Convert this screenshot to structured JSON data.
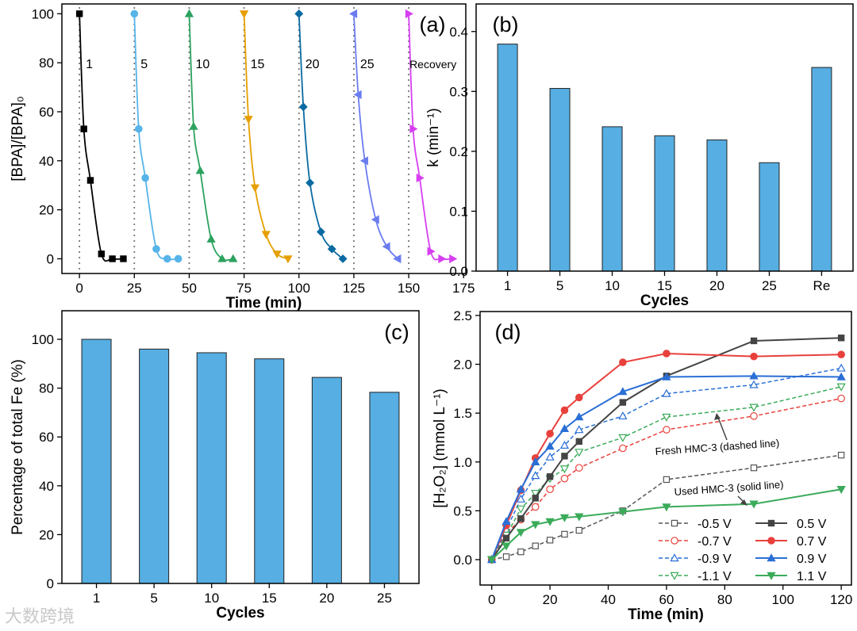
{
  "watermark": "大数跨境",
  "chart_data": [
    {
      "panel": "(a)",
      "type": "line",
      "xlabel": "Time (min)",
      "ylabel": "[BPA]/[BPA]₀",
      "xlim": [
        -8,
        176
      ],
      "ylim": [
        -6,
        104
      ],
      "xticks": [
        0,
        25,
        50,
        75,
        100,
        125,
        150,
        175
      ],
      "yticks": [
        0,
        20,
        40,
        60,
        80,
        100
      ],
      "cycle_markers": [
        0,
        25,
        50,
        75,
        100,
        125,
        150
      ],
      "series": [
        {
          "name": "1",
          "color": "#000000",
          "marker": "square",
          "x": [
            0,
            2,
            5,
            10,
            15,
            20
          ],
          "y": [
            100,
            53,
            32,
            2,
            0,
            0
          ]
        },
        {
          "name": "5",
          "color": "#56b4e9",
          "marker": "circle",
          "x": [
            25,
            27,
            30,
            35,
            40,
            45
          ],
          "y": [
            100,
            53,
            33,
            4,
            0,
            0
          ]
        },
        {
          "name": "10",
          "color": "#2ca25f",
          "marker": "triangle-up",
          "x": [
            50,
            52,
            55,
            60,
            65,
            70
          ],
          "y": [
            100,
            54,
            36,
            8,
            0,
            0
          ]
        },
        {
          "name": "15",
          "color": "#e69f00",
          "marker": "triangle-down",
          "x": [
            75,
            77,
            80,
            85,
            90,
            95
          ],
          "y": [
            100,
            57,
            29,
            10,
            2,
            0
          ]
        },
        {
          "name": "20",
          "color": "#0a6aa1",
          "marker": "diamond",
          "x": [
            100,
            102,
            105,
            110,
            115,
            120
          ],
          "y": [
            100,
            62,
            31,
            11,
            4,
            0
          ]
        },
        {
          "name": "25",
          "color": "#6a7cf0",
          "marker": "triangle-left",
          "x": [
            125,
            127,
            130,
            135,
            140,
            145
          ],
          "y": [
            100,
            67,
            40,
            16,
            5,
            0
          ]
        },
        {
          "name": "Recovery",
          "color": "#d63ff0",
          "marker": "triangle-right",
          "x": [
            150,
            152,
            155,
            160,
            165,
            170
          ],
          "y": [
            100,
            53,
            33,
            3,
            0,
            0
          ]
        }
      ]
    },
    {
      "panel": "(b)",
      "type": "bar",
      "xlabel": "Cycles",
      "ylabel": "k (min⁻¹)",
      "categories": [
        "1",
        "5",
        "10",
        "15",
        "20",
        "25",
        "Re"
      ],
      "values": [
        0.379,
        0.305,
        0.241,
        0.226,
        0.219,
        0.181,
        0.34
      ],
      "ylim": [
        0,
        0.446
      ],
      "yticks": [
        "0.0",
        "0.1",
        "0.2",
        "0.3",
        "0.4"
      ],
      "color": "#56aee2"
    },
    {
      "panel": "(c)",
      "type": "bar",
      "xlabel": "Cycles",
      "ylabel": "Percentage of total Fe (%)",
      "categories": [
        "1",
        "5",
        "10",
        "15",
        "20",
        "25"
      ],
      "values": [
        100,
        96,
        94.5,
        92,
        84.4,
        78.3
      ],
      "ylim": [
        0,
        111.7
      ],
      "yticks": [
        "0",
        "20",
        "40",
        "60",
        "80",
        "100"
      ],
      "color": "#56aee2"
    },
    {
      "panel": "(d)",
      "type": "line",
      "xlabel": "Time (min)",
      "ylabel": "[H₂O₂] (mmol L⁻¹)",
      "xlim": [
        -4,
        123.5
      ],
      "ylim": [
        -0.26,
        2.54
      ],
      "xticks": [
        0,
        20,
        40,
        60,
        80,
        100,
        120
      ],
      "yticks": [
        "0.0",
        "0.5",
        "1.0",
        "1.5",
        "2.0",
        "2.5"
      ],
      "x": [
        0,
        5,
        10,
        15,
        20,
        25,
        30,
        45,
        60,
        90,
        120
      ],
      "legend_position": "bottom-right",
      "annotations": [
        "Fresh HMC-3 (dashed line)",
        "Used HMC-3 (solid line)"
      ],
      "series": [
        {
          "name": "-0.5 V",
          "color": "#555555",
          "marker": "square",
          "filled": false,
          "dashed": true,
          "y": [
            0,
            0.03,
            0.08,
            0.14,
            0.2,
            0.26,
            0.3,
            0.5,
            0.82,
            0.94,
            1.07
          ]
        },
        {
          "name": "-0.7 V",
          "color": "#e8413c",
          "marker": "circle",
          "filled": false,
          "dashed": true,
          "y": [
            0,
            0.27,
            0.41,
            0.54,
            0.72,
            0.83,
            0.94,
            1.14,
            1.33,
            1.47,
            1.65
          ]
        },
        {
          "name": "-0.9 V",
          "color": "#2a6fd6",
          "marker": "triangle-up",
          "filled": false,
          "dashed": true,
          "y": [
            0,
            0.31,
            0.62,
            0.86,
            1.05,
            1.17,
            1.33,
            1.47,
            1.7,
            1.79,
            1.96
          ]
        },
        {
          "name": "-1.1 V",
          "color": "#3bab5a",
          "marker": "triangle-down",
          "filled": false,
          "dashed": true,
          "y": [
            0,
            0.25,
            0.52,
            0.68,
            0.83,
            0.93,
            1.1,
            1.25,
            1.46,
            1.56,
            1.77
          ]
        },
        {
          "name": "0.5 V",
          "color": "#444444",
          "marker": "square",
          "filled": true,
          "dashed": false,
          "y": [
            0,
            0.22,
            0.42,
            0.63,
            0.85,
            1.06,
            1.21,
            1.61,
            1.88,
            2.24,
            2.27
          ]
        },
        {
          "name": "0.7 V",
          "color": "#e8413c",
          "marker": "circle",
          "filled": true,
          "dashed": false,
          "y": [
            0,
            0.35,
            0.71,
            1.04,
            1.29,
            1.53,
            1.66,
            2.02,
            2.11,
            2.08,
            2.1
          ]
        },
        {
          "name": "0.9 V",
          "color": "#2a6fd6",
          "marker": "triangle-up",
          "filled": true,
          "dashed": false,
          "y": [
            0,
            0.39,
            0.72,
            1.0,
            1.16,
            1.34,
            1.46,
            1.72,
            1.87,
            1.88,
            1.87
          ]
        },
        {
          "name": "1.1 V",
          "color": "#3bab5a",
          "marker": "triangle-down",
          "filled": true,
          "dashed": false,
          "y": [
            0,
            0.14,
            0.28,
            0.36,
            0.39,
            0.43,
            0.44,
            0.49,
            0.54,
            0.57,
            0.72
          ]
        }
      ]
    }
  ]
}
